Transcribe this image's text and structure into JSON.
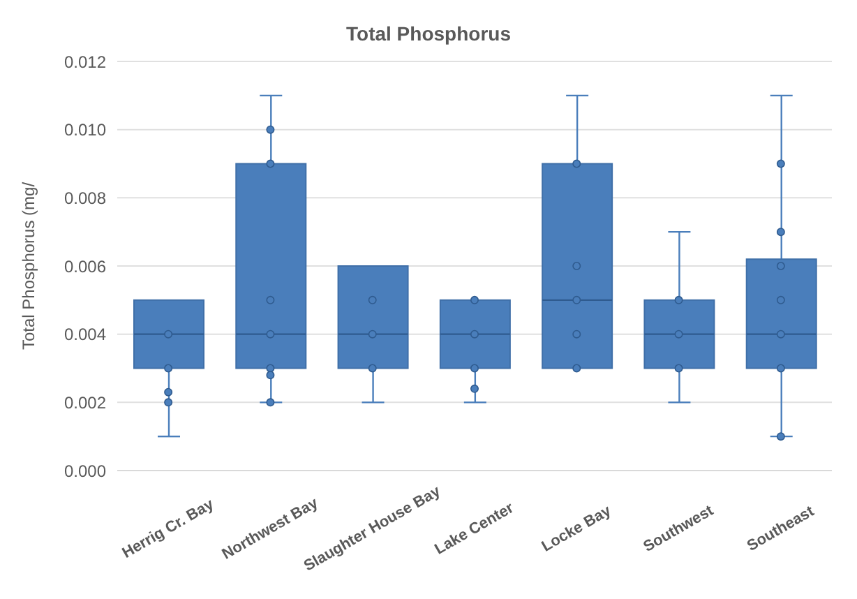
{
  "chart_data": {
    "type": "box",
    "title": "Total Phosphorus",
    "ylabel": "Total Phosphorus (mg/",
    "categories": [
      "Herrig Cr. Bay",
      "Northwest Bay",
      "Slaughter House Bay",
      "Lake Center",
      "Locke Bay",
      "Southwest",
      "Southeast"
    ],
    "color": "#4a7ebb",
    "boxes": [
      {
        "low": 0.001,
        "q1": 0.003,
        "median": 0.004,
        "q3": 0.005,
        "high": 0.005
      },
      {
        "low": 0.002,
        "q1": 0.003,
        "median": 0.004,
        "q3": 0.009,
        "high": 0.011
      },
      {
        "low": 0.002,
        "q1": 0.003,
        "median": 0.004,
        "q3": 0.006,
        "high": 0.006
      },
      {
        "low": 0.002,
        "q1": 0.003,
        "median": 0.004,
        "q3": 0.005,
        "high": 0.005
      },
      {
        "low": 0.003,
        "q1": 0.003,
        "median": 0.005,
        "q3": 0.009,
        "high": 0.011
      },
      {
        "low": 0.002,
        "q1": 0.003,
        "median": 0.004,
        "q3": 0.005,
        "high": 0.007
      },
      {
        "low": 0.001,
        "q1": 0.003,
        "median": 0.004,
        "q3": 0.0062,
        "high": 0.011
      }
    ],
    "series": [
      {
        "type": "scatter",
        "color": "#4a7ebb",
        "x": [
          "Herrig Cr. Bay",
          "Herrig Cr. Bay",
          "Herrig Cr. Bay",
          "Herrig Cr. Bay",
          "Northwest Bay",
          "Northwest Bay",
          "Northwest Bay",
          "Northwest Bay",
          "Northwest Bay",
          "Northwest Bay",
          "Northwest Bay",
          "Slaughter House Bay",
          "Slaughter House Bay",
          "Slaughter House Bay",
          "Lake Center",
          "Lake Center",
          "Lake Center",
          "Lake Center",
          "Locke Bay",
          "Locke Bay",
          "Locke Bay",
          "Locke Bay",
          "Locke Bay",
          "Southwest",
          "Southwest",
          "Southwest",
          "Southeast",
          "Southeast",
          "Southeast",
          "Southeast",
          "Southeast",
          "Southeast",
          "Southeast"
        ],
        "values": [
          0.004,
          0.003,
          0.0023,
          0.002,
          0.01,
          0.009,
          0.005,
          0.004,
          0.003,
          0.0028,
          0.002,
          0.005,
          0.004,
          0.003,
          0.005,
          0.004,
          0.003,
          0.0024,
          0.009,
          0.006,
          0.005,
          0.004,
          0.003,
          0.005,
          0.004,
          0.003,
          0.009,
          0.007,
          0.006,
          0.005,
          0.004,
          0.003,
          0.001
        ]
      }
    ],
    "ylim": [
      0,
      0.012
    ],
    "yticks": [
      {
        "value": 0,
        "label": "0.000"
      },
      {
        "value": 0.002,
        "label": "0.002"
      },
      {
        "value": 0.004,
        "label": "0.004"
      },
      {
        "value": 0.006,
        "label": "0.006"
      },
      {
        "value": 0.008,
        "label": "0.008"
      },
      {
        "value": 0.01,
        "label": "0.010"
      },
      {
        "value": 0.012,
        "label": "0.012"
      }
    ],
    "grid": "y",
    "marker": "circle"
  }
}
